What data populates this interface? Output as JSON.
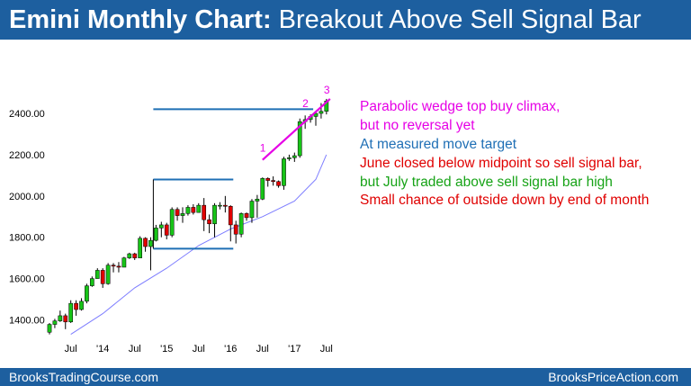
{
  "header": {
    "title_bold": "Emini Monthly Chart:",
    "title_rest": " Breakout Above Sell Signal Bar"
  },
  "annotations": [
    {
      "text": "Parabolic wedge top buy climax,",
      "color": "#e600e6"
    },
    {
      "text": "but no reversal yet",
      "color": "#e600e6"
    },
    {
      "text": "At measured move target",
      "color": "#1f6fb5"
    },
    {
      "text": "June closed below midpoint so sell signal bar,",
      "color": "#e00000"
    },
    {
      "text": "but July traded above sell signal bar high",
      "color": "#17a317"
    },
    {
      "text": "Small chance of outside down by end of month",
      "color": "#e00000"
    }
  ],
  "wedge_labels": [
    "1",
    "2",
    "3"
  ],
  "footer": {
    "left": "BrooksTradingCourse.com",
    "right": "BrooksPriceAction.com"
  },
  "colors": {
    "up_candle": "#17c417",
    "down_candle": "#e00000",
    "wedge": "#e600e6",
    "range_lines": "#1f6fb5",
    "moving_average": "#7d7dff",
    "band": "#1d5f9f"
  },
  "chart_data": {
    "type": "candlestick",
    "title": "Emini Monthly Chart: Breakout Above Sell Signal Bar",
    "ylim": [
      1300,
      2500
    ],
    "y_ticks": [
      1400,
      1600,
      1800,
      2000,
      2200,
      2400
    ],
    "y_tick_labels": [
      "1400.00",
      "1600.00",
      "1800.00",
      "2000.00",
      "2200.00",
      "2400.00"
    ],
    "x_tick_labels": [
      "Jul",
      "'14",
      "Jul",
      "'15",
      "Jul",
      "'16",
      "Jul",
      "'17",
      "Jul"
    ],
    "x_tick_months": [
      "2013-07",
      "2014-01",
      "2014-07",
      "2015-01",
      "2015-07",
      "2016-01",
      "2016-07",
      "2017-01",
      "2017-07"
    ],
    "months": [
      "2013-03",
      "2013-04",
      "2013-05",
      "2013-06",
      "2013-07",
      "2013-08",
      "2013-09",
      "2013-10",
      "2013-11",
      "2013-12",
      "2014-01",
      "2014-02",
      "2014-03",
      "2014-04",
      "2014-05",
      "2014-06",
      "2014-07",
      "2014-08",
      "2014-09",
      "2014-10",
      "2014-11",
      "2014-12",
      "2015-01",
      "2015-02",
      "2015-03",
      "2015-04",
      "2015-05",
      "2015-06",
      "2015-07",
      "2015-08",
      "2015-09",
      "2015-10",
      "2015-11",
      "2015-12",
      "2016-01",
      "2016-02",
      "2016-03",
      "2016-04",
      "2016-05",
      "2016-06",
      "2016-07",
      "2016-08",
      "2016-09",
      "2016-10",
      "2016-11",
      "2016-12",
      "2017-01",
      "2017-02",
      "2017-03",
      "2017-04",
      "2017-05",
      "2017-06",
      "2017-07"
    ],
    "ohlc": [
      [
        1340,
        1385,
        1330,
        1378
      ],
      [
        1378,
        1405,
        1360,
        1395
      ],
      [
        1395,
        1445,
        1390,
        1420
      ],
      [
        1420,
        1430,
        1355,
        1390
      ],
      [
        1390,
        1495,
        1385,
        1480
      ],
      [
        1480,
        1495,
        1420,
        1450
      ],
      [
        1450,
        1505,
        1445,
        1490
      ],
      [
        1490,
        1575,
        1480,
        1565
      ],
      [
        1565,
        1610,
        1560,
        1600
      ],
      [
        1600,
        1650,
        1600,
        1640
      ],
      [
        1640,
        1650,
        1555,
        1575
      ],
      [
        1575,
        1675,
        1570,
        1665
      ],
      [
        1665,
        1675,
        1630,
        1660
      ],
      [
        1660,
        1680,
        1630,
        1655
      ],
      [
        1655,
        1705,
        1655,
        1700
      ],
      [
        1700,
        1725,
        1695,
        1720
      ],
      [
        1720,
        1725,
        1690,
        1700
      ],
      [
        1700,
        1805,
        1700,
        1795
      ],
      [
        1795,
        1800,
        1730,
        1755
      ],
      [
        1755,
        1800,
        1640,
        1785
      ],
      [
        1785,
        1860,
        1780,
        1845
      ],
      [
        1845,
        1875,
        1800,
        1860
      ],
      [
        1860,
        1870,
        1790,
        1810
      ],
      [
        1810,
        1945,
        1800,
        1935
      ],
      [
        1935,
        1945,
        1880,
        1905
      ],
      [
        1905,
        1945,
        1870,
        1915
      ],
      [
        1915,
        1955,
        1905,
        1945
      ],
      [
        1945,
        1960,
        1910,
        1920
      ],
      [
        1920,
        1965,
        1920,
        1955
      ],
      [
        1955,
        1990,
        1830,
        1885
      ],
      [
        1885,
        1910,
        1820,
        1865
      ],
      [
        1865,
        1965,
        1800,
        1955
      ],
      [
        1955,
        1970,
        1935,
        1955
      ],
      [
        1955,
        2000,
        1920,
        1950
      ],
      [
        1950,
        1955,
        1780,
        1860
      ],
      [
        1860,
        1880,
        1770,
        1815
      ],
      [
        1815,
        1920,
        1800,
        1915
      ],
      [
        1915,
        1920,
        1880,
        1895
      ],
      [
        1895,
        1985,
        1870,
        1975
      ],
      [
        1975,
        2005,
        1895,
        1985
      ],
      [
        1985,
        2090,
        1980,
        2085
      ],
      [
        2085,
        2090,
        2045,
        2075
      ],
      [
        2075,
        2095,
        2050,
        2070
      ],
      [
        2070,
        2075,
        2040,
        2050
      ],
      [
        2050,
        2190,
        2030,
        2180
      ],
      [
        2180,
        2200,
        2170,
        2185
      ],
      [
        2185,
        2210,
        2165,
        2195
      ],
      [
        2195,
        2375,
        2185,
        2360
      ],
      [
        2360,
        2390,
        2325,
        2370
      ],
      [
        2370,
        2395,
        2355,
        2385
      ],
      [
        2385,
        2405,
        2340,
        2400
      ],
      [
        2400,
        2450,
        2375,
        2410
      ],
      [
        2410,
        2470,
        2395,
        2460
      ]
    ],
    "moving_average": [
      [
        4,
        1330
      ],
      [
        10,
        1430
      ],
      [
        16,
        1555
      ],
      [
        22,
        1650
      ],
      [
        28,
        1760
      ],
      [
        34,
        1840
      ],
      [
        40,
        1900
      ],
      [
        46,
        1975
      ],
      [
        50,
        2080
      ],
      [
        52,
        2200
      ]
    ],
    "trading_range": {
      "top": 2080,
      "bottom": 1745,
      "start": "2014-11",
      "end": "2016-01"
    },
    "measured_move_target": {
      "value": 2420,
      "start": "2014-11",
      "end": "2017-04"
    },
    "wedge_line": {
      "start": {
        "month": "2016-07",
        "value": 2175
      },
      "end": {
        "month": "2017-07",
        "value": 2470
      }
    },
    "wedge_pushes": [
      {
        "label": "1",
        "month": "2016-07",
        "value": 2215
      },
      {
        "label": "2",
        "month": "2017-03",
        "value": 2430
      },
      {
        "label": "3",
        "month": "2017-07",
        "value": 2495
      }
    ]
  }
}
